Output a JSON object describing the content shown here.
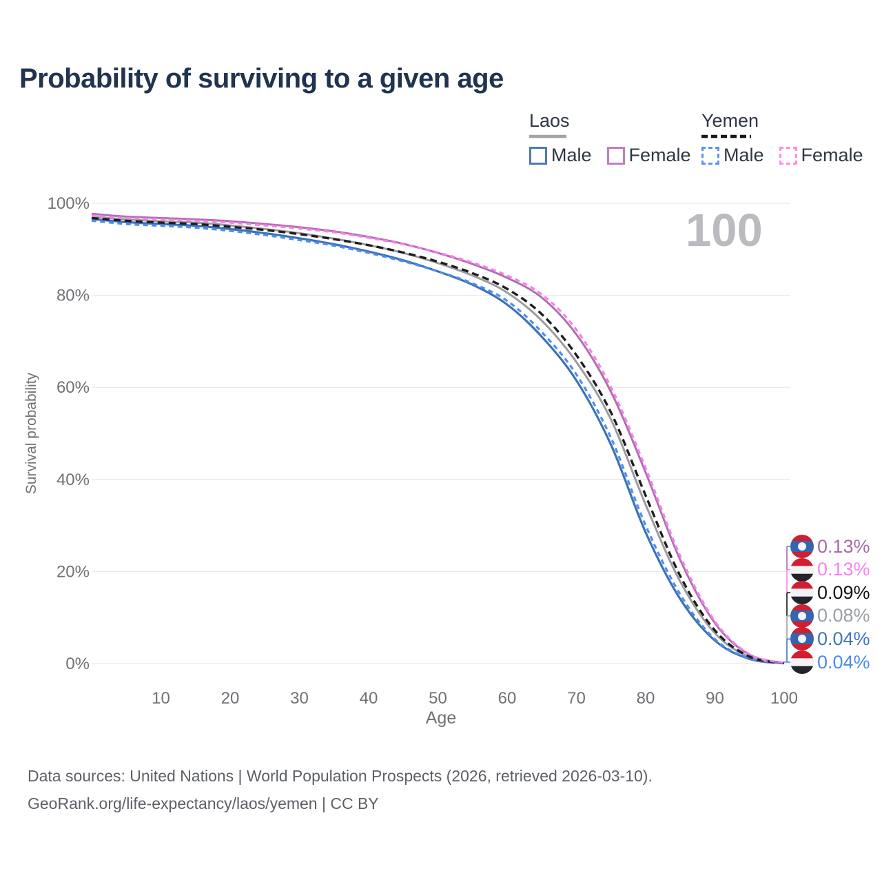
{
  "title": "Probability of surviving to a given age",
  "watermark_age": "100",
  "legend": {
    "laos": {
      "label": "Laos",
      "male": "Male",
      "female": "Female"
    },
    "yemen": {
      "label": "Yemen",
      "male": "Male",
      "female": "Female"
    }
  },
  "axes": {
    "y_label": "Survival probability",
    "x_label": "Age",
    "y_ticks": [
      {
        "label": "0%",
        "value": 0
      },
      {
        "label": "20%",
        "value": 20
      },
      {
        "label": "40%",
        "value": 40
      },
      {
        "label": "60%",
        "value": 60
      },
      {
        "label": "80%",
        "value": 80
      },
      {
        "label": "100%",
        "value": 100
      }
    ],
    "x_ticks": [
      {
        "label": "10",
        "value": 10
      },
      {
        "label": "20",
        "value": 20
      },
      {
        "label": "30",
        "value": 30
      },
      {
        "label": "40",
        "value": 40
      },
      {
        "label": "50",
        "value": 50
      },
      {
        "label": "60",
        "value": 60
      },
      {
        "label": "70",
        "value": 70
      },
      {
        "label": "80",
        "value": 80
      },
      {
        "label": "90",
        "value": 90
      },
      {
        "label": "100",
        "value": 100
      }
    ]
  },
  "end_labels": [
    {
      "series": "laos-female",
      "flag": "laos",
      "value": "0.13%",
      "color": "#a96ba7"
    },
    {
      "series": "yemen-female",
      "flag": "yemen",
      "value": "0.13%",
      "color": "#fb80f1"
    },
    {
      "series": "yemen-both",
      "flag": "yemen",
      "value": "0.09%",
      "color": "#141417"
    },
    {
      "series": "laos-both",
      "flag": "laos",
      "value": "0.08%",
      "color": "#9aa0a7"
    },
    {
      "series": "laos-male",
      "flag": "laos",
      "value": "0.04%",
      "color": "#3e75ba"
    },
    {
      "series": "yemen-male",
      "flag": "yemen",
      "value": "0.04%",
      "color": "#4a8bf0"
    }
  ],
  "flag_colors": {
    "laos": {
      "red": "#d01f30",
      "blue": "#3566ad",
      "white": "#f2f3f5"
    },
    "yemen": {
      "red": "#d01f30",
      "white": "#f3f3f5",
      "black": "#24242c"
    }
  },
  "footer": {
    "line1": "Data sources: United Nations | World Population Prospects (2026, retrieved 2026-03-10).",
    "line2": "GeoRank.org/life-expectancy/laos/yemen | CC BY"
  },
  "chart_data": {
    "type": "line",
    "title": "Probability of surviving to a given age",
    "xlabel": "Age",
    "ylabel": "Survival probability",
    "xlim": [
      0,
      100
    ],
    "ylim": [
      0,
      100
    ],
    "grid": true,
    "legend_position": "top-right",
    "x": [
      0,
      5,
      10,
      15,
      20,
      25,
      30,
      35,
      40,
      45,
      50,
      55,
      60,
      65,
      70,
      75,
      80,
      85,
      90,
      95,
      100
    ],
    "series": [
      {
        "name": "Laos Male",
        "id": "laos-male",
        "color": "#3c72b5",
        "dash": null,
        "width": 3.2,
        "values": [
          96.6,
          95.9,
          95.5,
          95.1,
          94.4,
          93.5,
          92.4,
          91.1,
          89.5,
          87.6,
          85.2,
          82.3,
          78.0,
          71.0,
          61.5,
          47.5,
          28.5,
          14.0,
          5.0,
          1.0,
          0.04
        ]
      },
      {
        "name": "Laos Both",
        "id": "laos-both",
        "color": "#9c9ca0",
        "dash": null,
        "width": 3.0,
        "values": [
          97.1,
          96.5,
          96.1,
          95.8,
          95.2,
          94.4,
          93.5,
          92.3,
          90.9,
          89.2,
          87.0,
          84.3,
          80.6,
          74.5,
          65.5,
          53.0,
          34.5,
          17.8,
          6.6,
          1.4,
          0.08
        ]
      },
      {
        "name": "Laos Female",
        "id": "laos-female",
        "color": "#b06fae",
        "dash": null,
        "width": 3.0,
        "values": [
          97.7,
          97.1,
          96.8,
          96.5,
          96.1,
          95.5,
          94.8,
          93.9,
          92.7,
          91.2,
          89.2,
          86.8,
          83.8,
          79.5,
          71.5,
          59.0,
          41.5,
          22.5,
          8.8,
          1.9,
          0.13
        ]
      },
      {
        "name": "Yemen Male",
        "id": "yemen-male",
        "color": "#4f8df0",
        "dash": "7 5.5",
        "width": 3.2,
        "values": [
          96.2,
          95.5,
          95.1,
          94.7,
          94.0,
          93.1,
          92.0,
          90.8,
          89.2,
          87.4,
          85.2,
          82.6,
          78.8,
          72.0,
          62.8,
          49.0,
          30.0,
          15.0,
          5.3,
          1.1,
          0.04
        ]
      },
      {
        "name": "Yemen Both",
        "id": "yemen-both",
        "color": "#1d1d1f",
        "dash": "10 6",
        "width": 3.4,
        "values": [
          96.8,
          96.2,
          95.8,
          95.5,
          94.9,
          94.2,
          93.3,
          92.2,
          90.9,
          89.3,
          87.3,
          84.8,
          81.4,
          75.9,
          67.0,
          54.5,
          36.5,
          19.0,
          7.2,
          1.5,
          0.09
        ]
      },
      {
        "name": "Yemen Female",
        "id": "yemen-female",
        "color": "#fa7df2",
        "dash": "7 5.5",
        "width": 3.2,
        "values": [
          97.3,
          96.8,
          96.5,
          96.2,
          95.8,
          95.2,
          94.5,
          93.7,
          92.5,
          91.1,
          89.3,
          87.1,
          84.3,
          80.2,
          72.5,
          60.0,
          42.5,
          23.3,
          9.2,
          2.0,
          0.13
        ]
      }
    ]
  }
}
